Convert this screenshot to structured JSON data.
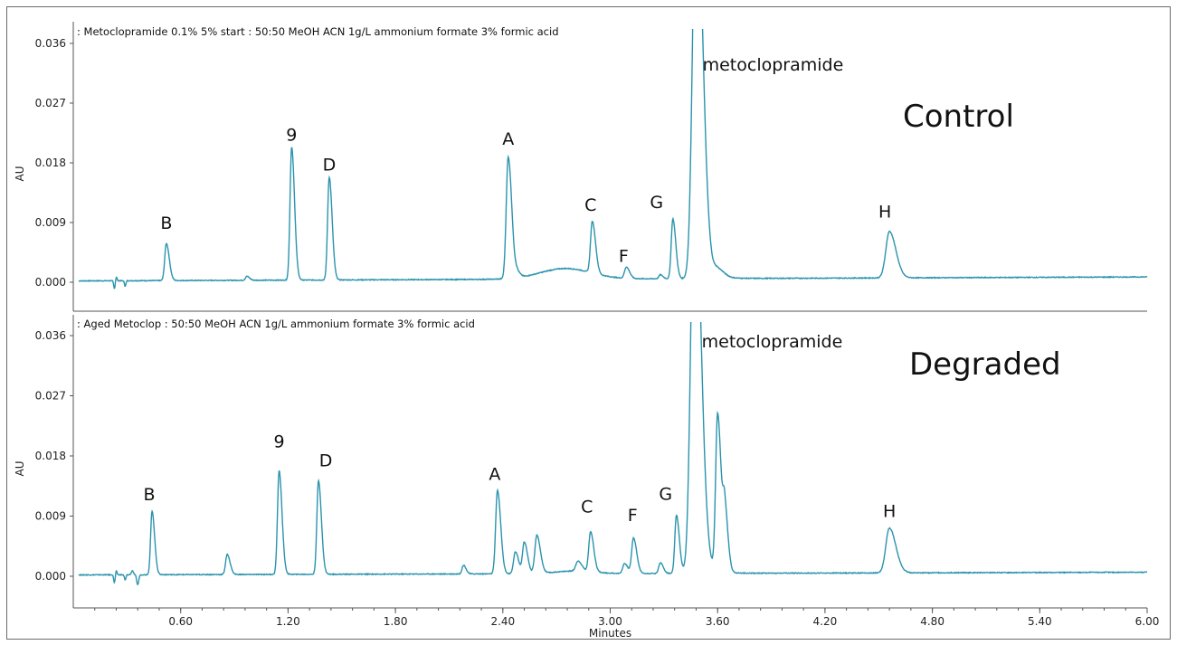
{
  "chart_data": [
    {
      "type": "line",
      "title": ": Metoclopramide 0.1% 5% start : 50:50 MeOH ACN 1g/L ammonium formate 3% formic acid",
      "annotation": "Control",
      "ylabel": "AU",
      "xlabel": "",
      "xlim": [
        0.0,
        6.0
      ],
      "ylim": [
        -0.0015,
        0.0375
      ],
      "yticks": [
        "0.000",
        "0.009",
        "0.018",
        "0.027",
        "0.036"
      ],
      "xticks": [],
      "grid": false,
      "line_color": "#2a93ad",
      "baseline": {
        "start": 0.0002,
        "end": 0.0008
      },
      "hump": {
        "x": 2.75,
        "height": 0.0016,
        "width": 0.2
      },
      "peaks": [
        {
          "label": "B",
          "x": 0.52,
          "y": 0.0056,
          "w": 0.009
        },
        {
          "label": "",
          "x": 0.97,
          "y": 0.0006,
          "w": 0.008
        },
        {
          "label": "9",
          "x": 1.22,
          "y": 0.02,
          "w": 0.009
        },
        {
          "label": "D",
          "x": 1.43,
          "y": 0.0155,
          "w": 0.009
        },
        {
          "label": "",
          "x": 2.48,
          "y": 0.0008,
          "w": 0.01
        },
        {
          "label": "A",
          "x": 2.43,
          "y": 0.0183,
          "w": 0.011
        },
        {
          "label": "C",
          "x": 2.9,
          "y": 0.0078,
          "w": 0.01
        },
        {
          "label": "F",
          "x": 3.09,
          "y": 0.0017,
          "w": 0.01
        },
        {
          "label": "",
          "x": 3.28,
          "y": 0.0006,
          "w": 0.008
        },
        {
          "label": "G",
          "x": 3.35,
          "y": 0.009,
          "w": 0.009
        },
        {
          "label": "metoclopramide",
          "x": 3.48,
          "y": 0.06,
          "w": 0.02
        },
        {
          "label": "",
          "x": 3.6,
          "y": 0.0012,
          "w": 0.02
        },
        {
          "label": "H",
          "x": 4.56,
          "y": 0.007,
          "w": 0.02
        }
      ]
    },
    {
      "type": "line",
      "title": ": Aged Metoclop : 50:50 MeOH ACN 1g/L ammonium formate 3% formic acid",
      "annotation": "Degraded",
      "ylabel": "AU",
      "xlabel": "Minutes",
      "xlim": [
        0.0,
        6.0
      ],
      "ylim": [
        -0.0015,
        0.0375
      ],
      "yticks": [
        "0.000",
        "0.009",
        "0.018",
        "0.027",
        "0.036"
      ],
      "xticks": [
        "0.60",
        "1.20",
        "1.80",
        "2.40",
        "3.00",
        "3.60",
        "4.20",
        "4.80",
        "5.40",
        "6.00"
      ],
      "grid": false,
      "line_color": "#2a93ad",
      "baseline": {
        "start": 0.0002,
        "end": 0.0006
      },
      "hump": {
        "x": 2.8,
        "height": 0.0004,
        "width": 0.15
      },
      "peaks": [
        {
          "label": "B",
          "x": 0.44,
          "y": 0.0095,
          "w": 0.008
        },
        {
          "label": "",
          "x": 0.86,
          "y": 0.003,
          "w": 0.009
        },
        {
          "label": "9",
          "x": 1.15,
          "y": 0.0155,
          "w": 0.009
        },
        {
          "label": "D",
          "x": 1.37,
          "y": 0.014,
          "w": 0.009
        },
        {
          "label": "",
          "x": 2.18,
          "y": 0.0013,
          "w": 0.008
        },
        {
          "label": "A",
          "x": 2.37,
          "y": 0.0125,
          "w": 0.01
        },
        {
          "label": "",
          "x": 2.47,
          "y": 0.0033,
          "w": 0.01
        },
        {
          "label": "",
          "x": 2.52,
          "y": 0.0047,
          "w": 0.01
        },
        {
          "label": "",
          "x": 2.59,
          "y": 0.0057,
          "w": 0.011
        },
        {
          "label": "",
          "x": 2.82,
          "y": 0.0015,
          "w": 0.012
        },
        {
          "label": "C",
          "x": 2.89,
          "y": 0.006,
          "w": 0.01
        },
        {
          "label": "",
          "x": 3.08,
          "y": 0.0015,
          "w": 0.01
        },
        {
          "label": "F",
          "x": 3.13,
          "y": 0.0053,
          "w": 0.01
        },
        {
          "label": "",
          "x": 3.28,
          "y": 0.0016,
          "w": 0.009
        },
        {
          "label": "G",
          "x": 3.37,
          "y": 0.0087,
          "w": 0.009
        },
        {
          "label": "metoclopramide",
          "x": 3.47,
          "y": 0.06,
          "w": 0.02
        },
        {
          "label": "",
          "x": 3.6,
          "y": 0.0236,
          "w": 0.011
        },
        {
          "label": "",
          "x": 3.64,
          "y": 0.009,
          "w": 0.01
        },
        {
          "label": "H",
          "x": 4.56,
          "y": 0.0067,
          "w": 0.02
        }
      ]
    }
  ]
}
